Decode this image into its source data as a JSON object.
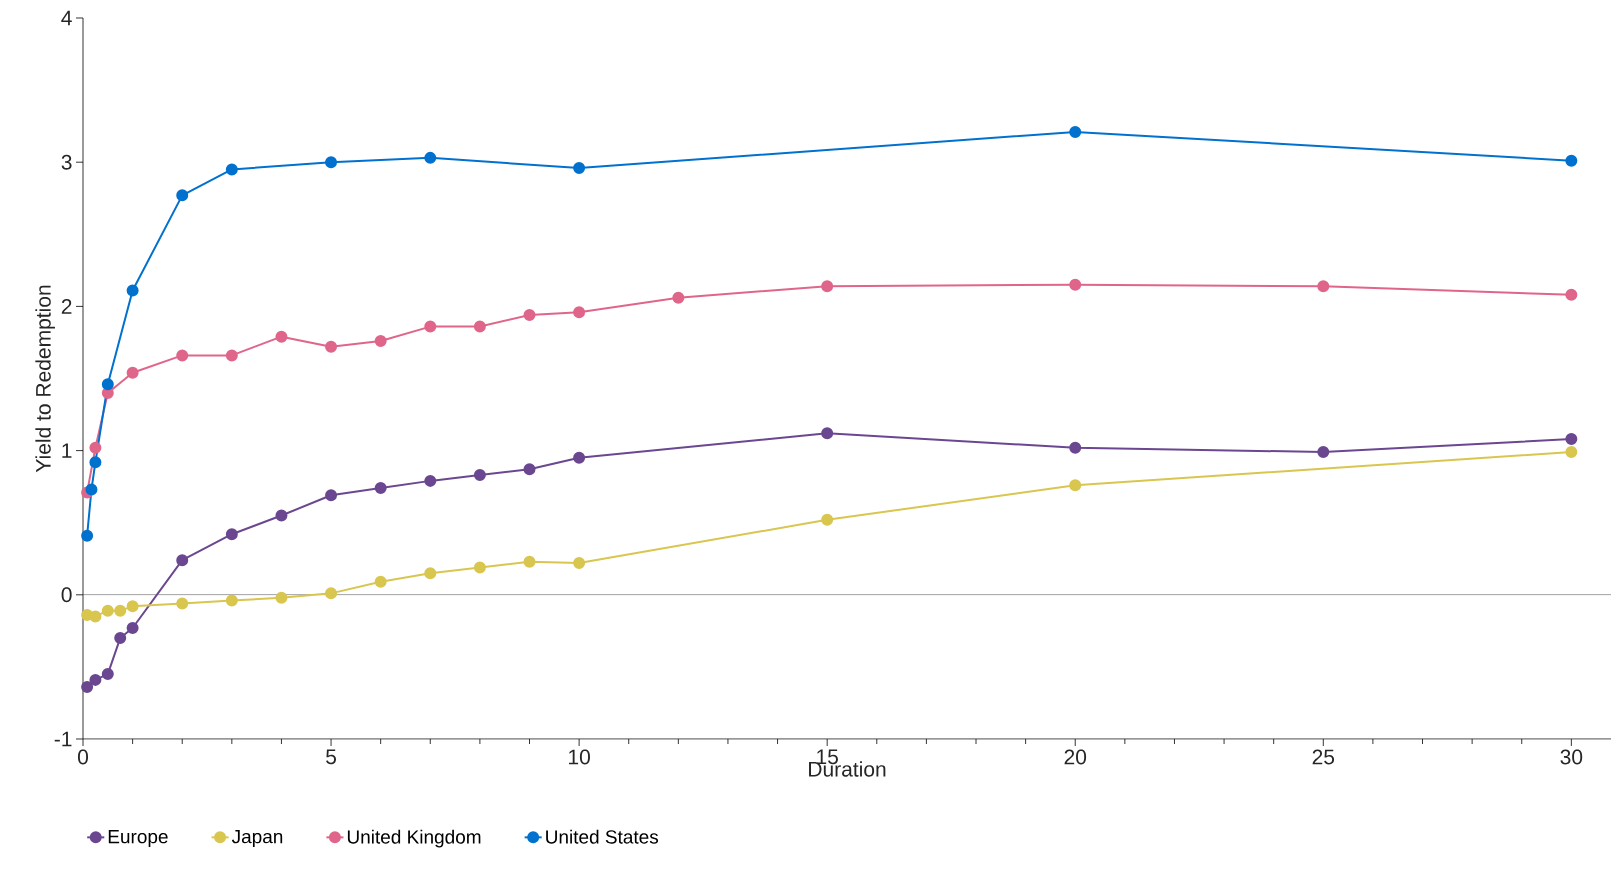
{
  "chart_data": {
    "type": "line",
    "xlabel": "Duration",
    "ylabel": "Yield to Redemption",
    "xlim": [
      0,
      30.8
    ],
    "ylim": [
      -1,
      4
    ],
    "xticks": [
      0,
      5,
      10,
      15,
      20,
      25,
      30
    ],
    "yticks": [
      -1,
      0,
      1,
      2,
      3,
      4
    ],
    "grid": false,
    "legend": "bottom",
    "marker": "circle",
    "line_style": "solid",
    "ref_lines": [
      {
        "axis": "y",
        "value": 0,
        "color": "#404040"
      }
    ],
    "series": [
      {
        "name": "Europe",
        "color": "#6a4790",
        "x": [
          0.083,
          0.25,
          0.5,
          0.75,
          1,
          2,
          3,
          4,
          5,
          6,
          7,
          8,
          9,
          10,
          15,
          20,
          25,
          30
        ],
        "values": [
          -0.64,
          -0.59,
          -0.55,
          -0.3,
          -0.23,
          0.24,
          0.42,
          0.55,
          0.69,
          0.74,
          0.79,
          0.83,
          0.87,
          0.95,
          1.12,
          1.02,
          0.99,
          1.08
        ]
      },
      {
        "name": "Japan",
        "color": "#d9c64f",
        "x": [
          0.083,
          0.25,
          0.5,
          0.75,
          1,
          2,
          3,
          4,
          5,
          6,
          7,
          8,
          9,
          10,
          15,
          20,
          30
        ],
        "values": [
          -0.14,
          -0.15,
          -0.11,
          -0.11,
          -0.08,
          -0.06,
          -0.04,
          -0.02,
          0.01,
          0.09,
          0.15,
          0.19,
          0.23,
          0.22,
          0.52,
          0.76,
          0.99
        ]
      },
      {
        "name": "United Kingdom",
        "color": "#e0658a",
        "x": [
          0.083,
          0.25,
          0.5,
          1,
          2,
          3,
          4,
          5,
          6,
          7,
          8,
          9,
          10,
          12,
          15,
          20,
          25,
          30
        ],
        "values": [
          0.71,
          1.02,
          1.4,
          1.54,
          1.66,
          1.66,
          1.79,
          1.72,
          1.76,
          1.86,
          1.86,
          1.94,
          1.96,
          2.06,
          2.14,
          2.15,
          2.14,
          2.08
        ]
      },
      {
        "name": "United States",
        "color": "#0071ce",
        "x": [
          0.083,
          0.17,
          0.25,
          0.5,
          1,
          2,
          3,
          5,
          7,
          10,
          20,
          30
        ],
        "values": [
          0.41,
          0.73,
          0.92,
          1.46,
          2.11,
          2.77,
          2.95,
          3.0,
          3.03,
          2.96,
          3.21,
          3.01
        ]
      }
    ]
  }
}
